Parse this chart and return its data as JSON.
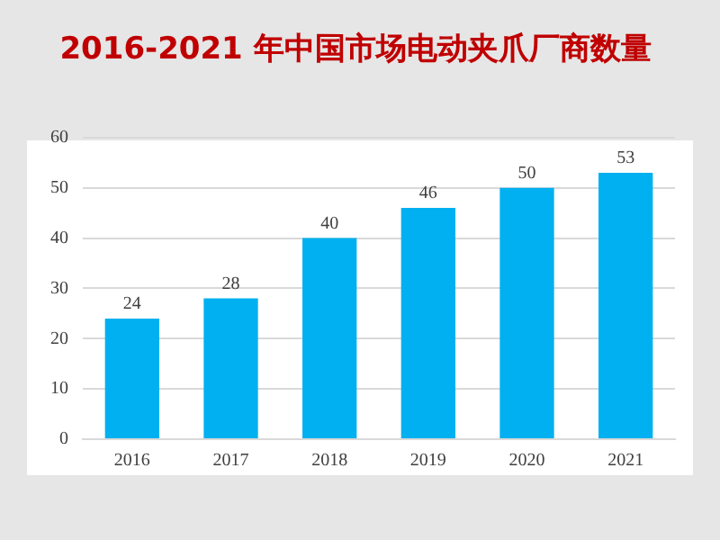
{
  "chart_data": {
    "type": "bar",
    "title": "2016-2021 年中国市场电动夹爪厂商数量",
    "categories": [
      "2016",
      "2017",
      "2018",
      "2019",
      "2020",
      "2021"
    ],
    "values": [
      24,
      28,
      40,
      46,
      50,
      53
    ],
    "color": "#00b0f0",
    "ylim": [
      0,
      60
    ],
    "yticks": [
      0,
      10,
      20,
      30,
      40,
      50,
      60
    ],
    "grid": "y",
    "data_labels": true,
    "legend": false
  }
}
